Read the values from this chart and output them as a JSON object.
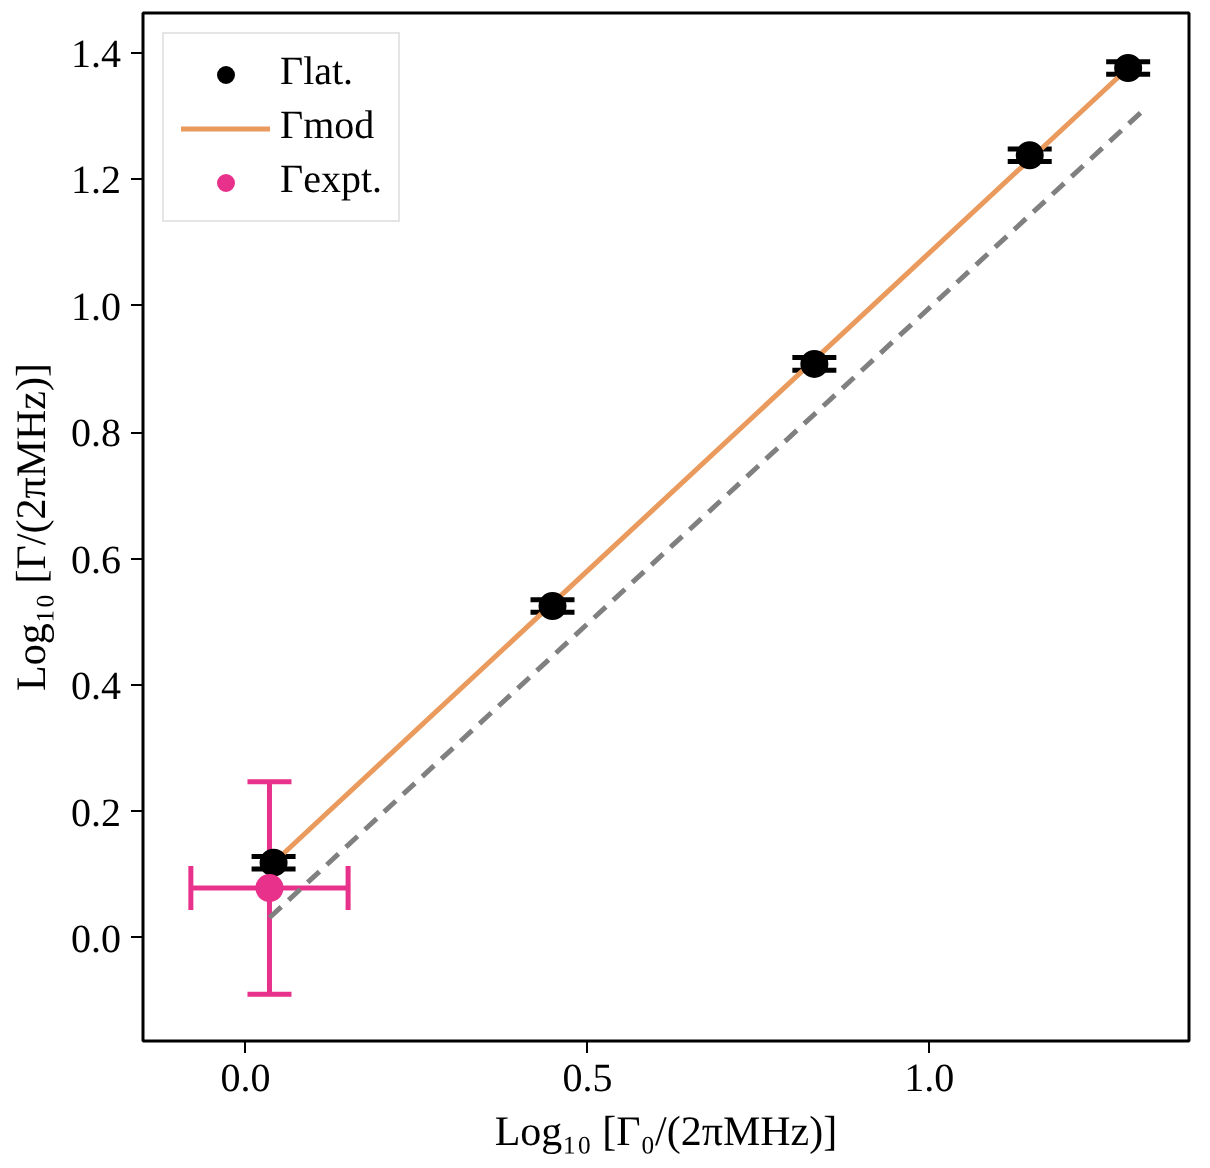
{
  "chart_data": {
    "type": "scatter",
    "xlabel": "Log₁₀ [Γ₀/(2πMHz)]",
    "ylabel": "Log₁₀ [Γ/(2πMHz)]",
    "xlim": [
      -0.15,
      1.38
    ],
    "ylim": [
      -0.163,
      1.463
    ],
    "xticks": [
      {
        "value": 0,
        "label": "0.0"
      },
      0.5,
      {
        "value": 1,
        "label": "1.0"
      }
    ],
    "yticks": [
      {
        "value": 0,
        "label": "0.0"
      },
      0.2,
      0.4,
      0.6,
      0.8,
      {
        "value": 1,
        "label": "1.0"
      },
      1.2,
      1.4
    ],
    "grid": false,
    "legend": "top left",
    "marker": "circle",
    "series": [
      {
        "type": "line",
        "color": "#808080",
        "line_style": "dashed",
        "marker": "none",
        "x": [
          0.035,
          1.311
        ],
        "values": [
          0.032,
          1.307
        ]
      },
      {
        "type": "line",
        "name": "Γmod",
        "color": "#e99a5c",
        "line_style": "solid",
        "marker": "none",
        "x": [
          0.041,
          1.291
        ],
        "values": [
          0.119,
          1.376
        ]
      },
      {
        "name": "Γlat.",
        "color": "#000000",
        "x": [
          0.041,
          0.449,
          0.832,
          1.147,
          1.291
        ],
        "values": [
          0.119,
          0.525,
          0.908,
          1.238,
          1.376
        ],
        "errors": [
          0.01,
          0.01,
          0.01,
          0.01,
          0.01
        ]
      },
      {
        "name": "Γexpt.",
        "color": "#e8318a",
        "x": [
          0.035
        ],
        "values": [
          0.079
        ],
        "errors": [
          0.168
        ],
        "xerrors": [
          0.115
        ]
      }
    ]
  }
}
